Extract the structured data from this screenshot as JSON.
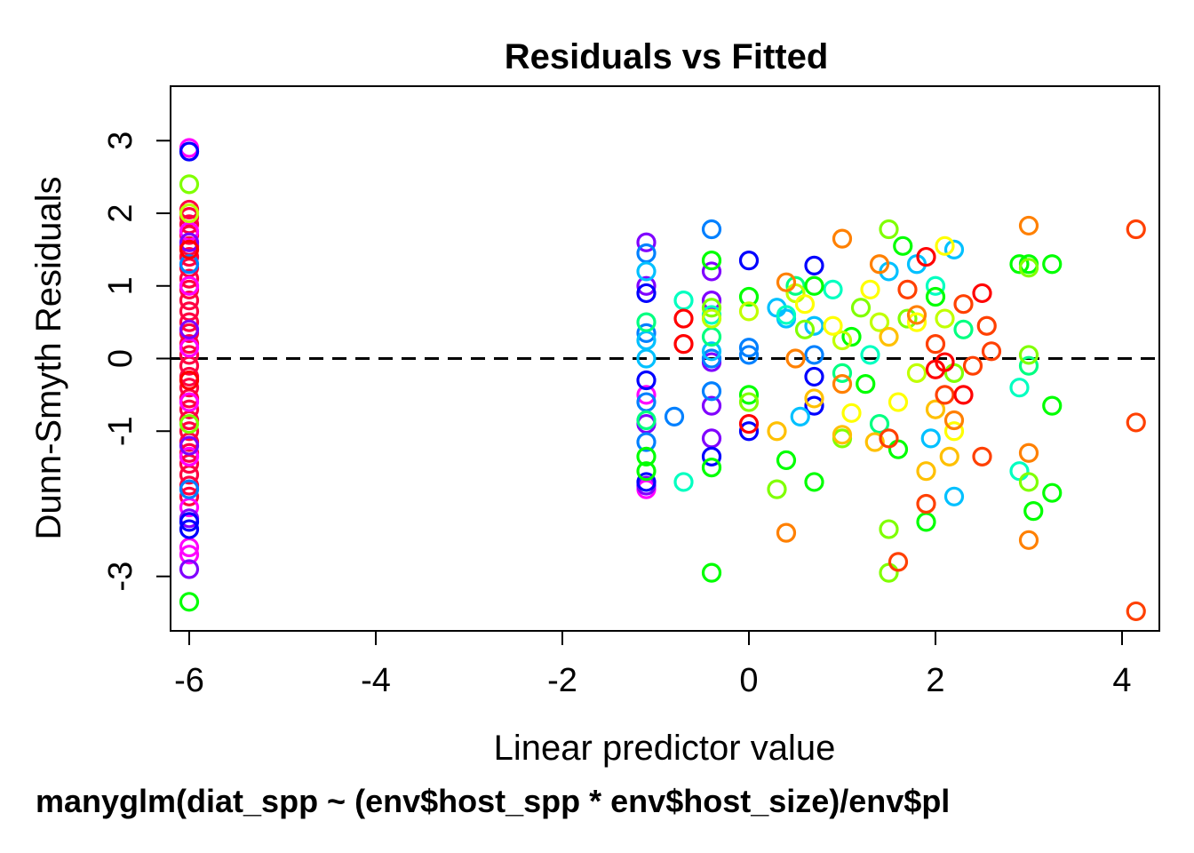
{
  "chart_data": {
    "type": "scatter",
    "title": "Residuals vs Fitted",
    "xlabel": "Linear predictor value",
    "ylabel": "Dunn-Smyth Residuals",
    "subtitle": "manyglm(diat_spp ~ (env$host_spp * env$host_size)/env$pl",
    "xlim": [
      -6.2,
      4.4
    ],
    "ylim": [
      -3.75,
      3.75
    ],
    "x_ticks": [
      -6,
      -4,
      -2,
      0,
      2,
      4
    ],
    "y_ticks": [
      -3,
      -1,
      0,
      1,
      2,
      3
    ],
    "x_tick_labels": [
      "-6",
      "-4",
      "-2",
      "0",
      "2",
      "4"
    ],
    "y_tick_labels": [
      "-3",
      "-1",
      "0",
      "1",
      "2",
      "3"
    ],
    "reference_line": {
      "y": 0,
      "style": "dashed"
    },
    "grid": false,
    "marker": "open-circle",
    "series": [
      {
        "color": "#ff0040",
        "points": [
          [
            -6,
            2.05
          ],
          [
            -6,
            1.95
          ],
          [
            -6,
            1.85
          ],
          [
            -6,
            1.7
          ],
          [
            -6,
            1.55
          ],
          [
            -6,
            1.4
          ],
          [
            -6,
            1.25
          ],
          [
            -6,
            1.1
          ],
          [
            -6,
            0.95
          ],
          [
            -6,
            0.8
          ],
          [
            -6,
            0.65
          ],
          [
            -6,
            0.5
          ],
          [
            -6,
            0.35
          ],
          [
            -6,
            0.2
          ],
          [
            -6,
            0.05
          ],
          [
            -6,
            -0.1
          ],
          [
            -6,
            -0.25
          ],
          [
            -6,
            -0.4
          ],
          [
            -6,
            -0.55
          ],
          [
            -6,
            -0.7
          ],
          [
            -6,
            -0.85
          ],
          [
            -6,
            -1.0
          ],
          [
            -6,
            -1.15
          ],
          [
            -6,
            -1.3
          ],
          [
            -6,
            -1.45
          ],
          [
            -6,
            -1.6
          ],
          [
            -6,
            -1.75
          ],
          [
            -6,
            -1.9
          ]
        ]
      },
      {
        "color": "#ff00ff",
        "points": [
          [
            -6,
            2.9
          ],
          [
            -6,
            1.75
          ],
          [
            -6,
            1.0
          ],
          [
            -6,
            0.15
          ],
          [
            -6,
            -0.6
          ],
          [
            -6,
            -1.35
          ],
          [
            -6,
            -2.05
          ],
          [
            -6,
            -2.6
          ],
          [
            -6,
            -2.7
          ],
          [
            -1.1,
            -0.5
          ],
          [
            -1.1,
            -1.8
          ]
        ]
      },
      {
        "color": "#8000ff",
        "points": [
          [
            -6,
            2.85
          ],
          [
            -6,
            1.6
          ],
          [
            -6,
            0.4
          ],
          [
            -6,
            -1.2
          ],
          [
            -6,
            -2.2
          ],
          [
            -6,
            -2.9
          ],
          [
            -1.1,
            1.6
          ],
          [
            -1.1,
            1.0
          ],
          [
            -1.1,
            -0.9
          ],
          [
            -1.1,
            -1.75
          ],
          [
            -0.4,
            1.2
          ],
          [
            -0.4,
            0.8
          ],
          [
            -0.4,
            -0.05
          ],
          [
            -0.4,
            -0.65
          ],
          [
            -0.4,
            -1.1
          ]
        ]
      },
      {
        "color": "#0000ff",
        "points": [
          [
            -6,
            2.85
          ],
          [
            -6,
            -2.25
          ],
          [
            -6,
            -2.35
          ],
          [
            -1.1,
            0.9
          ],
          [
            -1.1,
            -0.3
          ],
          [
            -1.1,
            -1.7
          ],
          [
            -0.4,
            -1.35
          ],
          [
            0,
            1.35
          ],
          [
            0,
            -1.0
          ],
          [
            0.7,
            1.28
          ],
          [
            0.7,
            -0.25
          ],
          [
            0.7,
            -0.65
          ]
        ]
      },
      {
        "color": "#0080ff",
        "points": [
          [
            -6,
            1.3
          ],
          [
            -6,
            -1.8
          ],
          [
            -1.1,
            1.45
          ],
          [
            -1.1,
            0.35
          ],
          [
            -1.1,
            -0.6
          ],
          [
            -1.1,
            -1.15
          ],
          [
            -0.8,
            -0.8
          ],
          [
            -0.4,
            1.78
          ],
          [
            -0.4,
            0.0
          ],
          [
            -0.4,
            -0.45
          ],
          [
            0,
            0.15
          ],
          [
            0,
            0.05
          ],
          [
            0.7,
            0.05
          ]
        ]
      },
      {
        "color": "#00c0ff",
        "points": [
          [
            -1.1,
            1.2
          ],
          [
            -1.1,
            0.25
          ],
          [
            -1.1,
            0.0
          ],
          [
            -0.4,
            0.1
          ],
          [
            0.3,
            0.7
          ],
          [
            0.4,
            0.55
          ],
          [
            0.7,
            0.45
          ],
          [
            1.5,
            1.2
          ],
          [
            1.8,
            1.3
          ],
          [
            1.95,
            -1.1
          ],
          [
            2.2,
            -1.9
          ],
          [
            2.2,
            1.5
          ],
          [
            0.55,
            -0.8
          ]
        ]
      },
      {
        "color": "#00ffc0",
        "points": [
          [
            -0.7,
            0.8
          ],
          [
            -0.7,
            -1.7
          ],
          [
            -0.4,
            0.6
          ],
          [
            0.4,
            0.6
          ],
          [
            0.9,
            0.95
          ],
          [
            1.3,
            0.05
          ],
          [
            2.0,
            1.0
          ],
          [
            2.9,
            -1.55
          ],
          [
            2.9,
            -0.4
          ]
        ]
      },
      {
        "color": "#00ff80",
        "points": [
          [
            -1.1,
            0.5
          ],
          [
            -1.1,
            -0.85
          ],
          [
            -0.4,
            0.3
          ],
          [
            0.5,
            1.0
          ],
          [
            1.0,
            -0.2
          ],
          [
            1.4,
            -0.9
          ],
          [
            2.3,
            0.4
          ],
          [
            3.0,
            -0.1
          ]
        ]
      },
      {
        "color": "#00ff00",
        "points": [
          [
            -6,
            -3.35
          ],
          [
            -1.1,
            -1.35
          ],
          [
            -1.1,
            -1.55
          ],
          [
            -0.4,
            1.35
          ],
          [
            -0.4,
            -1.5
          ],
          [
            -0.4,
            -2.95
          ],
          [
            0,
            -0.5
          ],
          [
            0,
            0.85
          ],
          [
            0.4,
            -1.4
          ],
          [
            0.7,
            -1.7
          ],
          [
            0.7,
            1.0
          ],
          [
            1.1,
            0.3
          ],
          [
            1.25,
            -0.35
          ],
          [
            1.6,
            -1.25
          ],
          [
            1.65,
            1.55
          ],
          [
            1.9,
            -2.25
          ],
          [
            2.0,
            0.85
          ],
          [
            3.05,
            -2.1
          ],
          [
            3.25,
            1.3
          ],
          [
            3.25,
            -0.65
          ],
          [
            3.25,
            -1.85
          ],
          [
            2.9,
            1.3
          ],
          [
            3.0,
            1.3
          ]
        ]
      },
      {
        "color": "#80ff00",
        "points": [
          [
            -6,
            2.4
          ],
          [
            -6,
            -0.9
          ],
          [
            -0.4,
            0.7
          ],
          [
            0,
            -0.6
          ],
          [
            0.3,
            -1.8
          ],
          [
            0.6,
            0.4
          ],
          [
            1.0,
            -1.1
          ],
          [
            1.2,
            0.7
          ],
          [
            1.5,
            1.78
          ],
          [
            1.5,
            -2.95
          ],
          [
            1.5,
            -2.35
          ],
          [
            1.7,
            0.55
          ],
          [
            2.2,
            -0.2
          ],
          [
            3.0,
            -1.7
          ],
          [
            3.0,
            1.25
          ],
          [
            3.0,
            0.05
          ]
        ]
      },
      {
        "color": "#c0ff00",
        "points": [
          [
            -6,
            2.0
          ],
          [
            -0.4,
            0.55
          ],
          [
            0,
            0.65
          ],
          [
            0.5,
            0.9
          ],
          [
            1.0,
            0.25
          ],
          [
            1.4,
            0.5
          ],
          [
            1.8,
            -0.2
          ],
          [
            2.1,
            0.55
          ]
        ]
      },
      {
        "color": "#ffff00",
        "points": [
          [
            0.6,
            0.75
          ],
          [
            0.9,
            0.45
          ],
          [
            1.3,
            0.95
          ],
          [
            1.6,
            -0.6
          ],
          [
            1.8,
            0.5
          ],
          [
            2.1,
            1.55
          ],
          [
            2.2,
            -1.0
          ],
          [
            1.1,
            -0.75
          ]
        ]
      },
      {
        "color": "#ffc000",
        "points": [
          [
            0.3,
            -1.0
          ],
          [
            0.7,
            -0.55
          ],
          [
            1.0,
            -1.05
          ],
          [
            1.35,
            -1.15
          ],
          [
            1.9,
            -1.55
          ],
          [
            2.15,
            -1.35
          ],
          [
            2.0,
            -0.7
          ],
          [
            1.5,
            0.3
          ]
        ]
      },
      {
        "color": "#ff8000",
        "points": [
          [
            0.4,
            1.05
          ],
          [
            0.5,
            0.0
          ],
          [
            1.0,
            1.65
          ],
          [
            1.0,
            -0.35
          ],
          [
            1.4,
            1.3
          ],
          [
            1.8,
            0.6
          ],
          [
            2.2,
            -0.85
          ],
          [
            3.0,
            1.83
          ],
          [
            3.0,
            -1.3
          ],
          [
            3.0,
            -2.5
          ],
          [
            0.4,
            -2.4
          ]
        ]
      },
      {
        "color": "#ff4000",
        "points": [
          [
            1.5,
            -1.1
          ],
          [
            1.6,
            -2.8
          ],
          [
            1.9,
            -2.0
          ],
          [
            1.7,
            0.95
          ],
          [
            2.0,
            0.2
          ],
          [
            2.1,
            -0.5
          ],
          [
            2.3,
            0.75
          ],
          [
            2.4,
            -0.1
          ],
          [
            2.5,
            -1.35
          ],
          [
            2.55,
            0.45
          ],
          [
            2.6,
            0.1
          ],
          [
            4.15,
            1.78
          ],
          [
            4.15,
            -0.88
          ],
          [
            4.15,
            -3.48
          ]
        ]
      },
      {
        "color": "#ff0000",
        "points": [
          [
            -6,
            1.5
          ],
          [
            -6,
            -0.3
          ],
          [
            -0.7,
            0.55
          ],
          [
            -0.7,
            0.2
          ],
          [
            0,
            -0.9
          ],
          [
            1.9,
            1.4
          ],
          [
            2.0,
            -0.15
          ],
          [
            2.1,
            -0.05
          ],
          [
            2.3,
            -0.5
          ],
          [
            2.5,
            0.9
          ]
        ]
      }
    ]
  }
}
